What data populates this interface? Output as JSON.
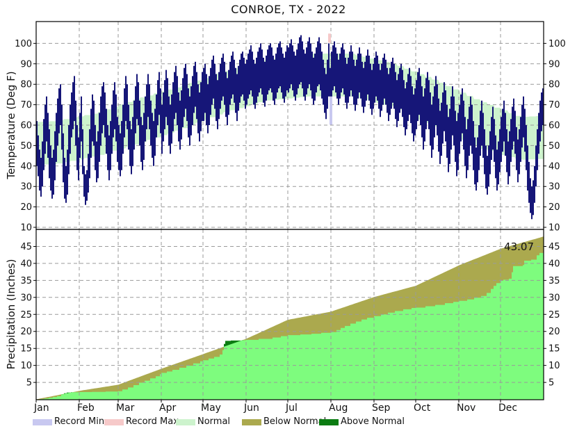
{
  "title": "CONROE, TX - 2022",
  "temp_panel": {
    "ylabel": "Temperature (Deg F)",
    "yticks": [
      10,
      20,
      30,
      40,
      50,
      60,
      70,
      80,
      90,
      100
    ]
  },
  "precip_panel": {
    "ylabel": "Precipitation (Inches)",
    "yticks": [
      5,
      10,
      15,
      20,
      25,
      30,
      35,
      40,
      45
    ],
    "annotation": "43.07"
  },
  "months": [
    "Jan",
    "Feb",
    "Mar",
    "Apr",
    "May",
    "Jun",
    "Jul",
    "Aug",
    "Sep",
    "Oct",
    "Nov",
    "Dec"
  ],
  "month_start_days": [
    0,
    31,
    59,
    90,
    120,
    151,
    181,
    212,
    243,
    273,
    304,
    334
  ],
  "colors": {
    "bar_navy": "#161678",
    "normal_band": "#cdf3cd",
    "record_min": "#c8c8f0",
    "record_max": "#f6c9c9",
    "precip_actual": "#7efc7e",
    "below_normal": "#aba94e",
    "above_normal": "#0b7c12",
    "grid": "#9a9a9a",
    "frame": "#000000"
  },
  "legend": [
    {
      "label": "Record Min",
      "color": "#c8c8f0"
    },
    {
      "label": "Record Max",
      "color": "#f6c9c9"
    },
    {
      "label": "Normal",
      "color": "#cdf3cd"
    },
    {
      "label": "Below Normal",
      "color": "#aba94e"
    },
    {
      "label": "Above Normal",
      "color": "#0b7c12"
    }
  ],
  "chart_data": [
    {
      "type": "bar",
      "title": "CONROE, TX - 2022",
      "ylabel": "Temperature (Deg F)",
      "ylim": [
        10,
        111
      ],
      "x_unit": "day_of_year_2022",
      "grid": true,
      "daily_high": [
        62,
        55,
        48,
        44,
        52,
        63,
        70,
        74,
        66,
        58,
        50,
        44,
        48,
        57,
        66,
        73,
        78,
        80,
        70,
        56,
        44,
        40,
        48,
        60,
        70,
        76,
        81,
        84,
        72,
        60,
        54,
        66,
        74,
        58,
        40,
        36,
        38,
        46,
        58,
        68,
        75,
        72,
        60,
        52,
        57,
        66,
        74,
        79,
        81,
        76,
        68,
        60,
        55,
        62,
        70,
        77,
        81,
        75,
        64,
        60,
        56,
        62,
        70,
        78,
        84,
        80,
        70,
        62,
        58,
        64,
        72,
        79,
        85,
        81,
        72,
        64,
        60,
        66,
        74,
        80,
        85,
        80,
        72,
        66,
        62,
        68,
        75,
        82,
        86,
        78,
        70,
        76,
        82,
        87,
        83,
        74,
        70,
        75,
        81,
        86,
        89,
        84,
        76,
        72,
        77,
        83,
        88,
        90,
        85,
        78,
        74,
        79,
        84,
        89,
        91,
        86,
        80,
        76,
        81,
        86,
        88,
        90,
        85,
        80,
        84,
        88,
        92,
        94,
        90,
        85,
        82,
        86,
        90,
        93,
        95,
        91,
        86,
        83,
        87,
        91,
        94,
        96,
        92,
        88,
        85,
        89,
        92,
        95,
        96,
        93,
        90,
        92,
        95,
        97,
        99,
        96,
        92,
        90,
        93,
        96,
        98,
        100,
        97,
        93,
        91,
        94,
        97,
        99,
        100,
        98,
        94,
        92,
        95,
        98,
        100,
        101,
        98,
        95,
        93,
        96,
        99,
        98,
        100,
        102,
        99,
        96,
        94,
        97,
        100,
        103,
        104,
        101,
        97,
        95,
        98,
        101,
        103,
        100,
        96,
        93,
        95,
        98,
        101,
        103,
        100,
        96,
        92,
        88,
        85,
        92,
        100,
        88,
        96,
        99,
        101,
        98,
        95,
        92,
        95,
        98,
        100,
        97,
        93,
        90,
        93,
        96,
        99,
        96,
        92,
        89,
        92,
        95,
        98,
        95,
        91,
        88,
        91,
        94,
        97,
        94,
        90,
        87,
        90,
        93,
        96,
        94,
        90,
        87,
        90,
        93,
        95,
        92,
        88,
        85,
        88,
        91,
        93,
        90,
        86,
        82,
        85,
        88,
        90,
        87,
        82,
        78,
        81,
        85,
        88,
        84,
        79,
        75,
        78,
        82,
        86,
        88,
        84,
        79,
        74,
        78,
        83,
        86,
        82,
        76,
        70,
        74,
        79,
        84,
        80,
        73,
        67,
        71,
        76,
        81,
        77,
        70,
        64,
        68,
        74,
        79,
        74,
        67,
        62,
        66,
        70,
        75,
        78,
        72,
        64,
        58,
        63,
        69,
        74,
        70,
        62,
        54,
        49,
        54,
        60,
        67,
        72,
        66,
        58,
        50,
        45,
        50,
        57,
        64,
        69,
        63,
        55,
        48,
        52,
        58,
        64,
        68,
        72,
        66,
        58,
        52,
        57,
        63,
        69,
        73,
        67,
        59,
        53,
        58,
        64,
        70,
        74,
        68,
        60,
        50,
        42,
        34,
        30,
        33,
        40,
        50,
        58,
        66,
        72,
        76,
        78
      ],
      "daily_low": [
        40,
        35,
        28,
        25,
        30,
        38,
        46,
        52,
        44,
        34,
        28,
        24,
        26,
        33,
        42,
        50,
        56,
        60,
        48,
        32,
        24,
        22,
        26,
        36,
        46,
        54,
        58,
        62,
        50,
        38,
        33,
        44,
        52,
        36,
        25,
        21,
        23,
        27,
        34,
        44,
        52,
        50,
        38,
        32,
        34,
        42,
        50,
        56,
        60,
        54,
        46,
        38,
        33,
        38,
        46,
        54,
        58,
        52,
        42,
        38,
        35,
        38,
        46,
        54,
        62,
        58,
        48,
        40,
        36,
        40,
        48,
        56,
        63,
        60,
        50,
        42,
        38,
        43,
        52,
        58,
        64,
        58,
        50,
        44,
        40,
        45,
        54,
        60,
        65,
        56,
        46,
        52,
        58,
        64,
        60,
        50,
        46,
        51,
        57,
        63,
        66,
        60,
        52,
        48,
        53,
        59,
        64,
        68,
        62,
        54,
        50,
        55,
        60,
        66,
        69,
        63,
        56,
        52,
        57,
        62,
        62,
        66,
        60,
        56,
        60,
        65,
        70,
        73,
        68,
        62,
        58,
        63,
        68,
        72,
        74,
        70,
        64,
        60,
        65,
        70,
        73,
        75,
        71,
        66,
        62,
        67,
        71,
        74,
        75,
        72,
        68,
        70,
        73,
        75,
        77,
        74,
        70,
        68,
        71,
        74,
        76,
        78,
        75,
        71,
        69,
        72,
        75,
        77,
        78,
        76,
        72,
        70,
        73,
        76,
        78,
        79,
        76,
        73,
        71,
        74,
        77,
        76,
        78,
        80,
        77,
        74,
        72,
        75,
        78,
        80,
        81,
        78,
        74,
        72,
        75,
        78,
        80,
        77,
        73,
        70,
        72,
        76,
        79,
        80,
        77,
        73,
        70,
        66,
        63,
        68,
        74,
        74,
        74,
        77,
        79,
        76,
        73,
        70,
        73,
        76,
        78,
        75,
        71,
        68,
        71,
        74,
        77,
        74,
        70,
        67,
        70,
        73,
        76,
        73,
        69,
        66,
        69,
        72,
        75,
        72,
        68,
        65,
        68,
        71,
        74,
        72,
        68,
        64,
        67,
        70,
        73,
        70,
        66,
        62,
        65,
        68,
        71,
        68,
        63,
        59,
        62,
        66,
        68,
        64,
        59,
        55,
        58,
        62,
        65,
        61,
        56,
        52,
        55,
        58,
        62,
        65,
        60,
        54,
        48,
        52,
        58,
        62,
        58,
        50,
        44,
        48,
        54,
        60,
        55,
        47,
        41,
        45,
        51,
        57,
        52,
        44,
        37,
        41,
        48,
        55,
        50,
        42,
        35,
        38,
        46,
        52,
        56,
        48,
        40,
        34,
        38,
        45,
        50,
        46,
        38,
        31,
        28,
        32,
        38,
        45,
        50,
        44,
        36,
        29,
        26,
        30,
        36,
        43,
        48,
        42,
        34,
        28,
        31,
        37,
        42,
        47,
        52,
        45,
        37,
        31,
        35,
        42,
        48,
        52,
        46,
        38,
        32,
        36,
        42,
        49,
        54,
        47,
        38,
        28,
        22,
        17,
        14,
        16,
        22,
        30,
        38,
        46,
        52,
        57,
        60
      ],
      "normal_band_anchors": [
        [
          0,
          61.5,
          40.5
        ],
        [
          15,
          62,
          41
        ],
        [
          45,
          66,
          45
        ],
        [
          74,
          73,
          51
        ],
        [
          105,
          79,
          58
        ],
        [
          135,
          86,
          66
        ],
        [
          166,
          92,
          72
        ],
        [
          196,
          95,
          74
        ],
        [
          227,
          95,
          74
        ],
        [
          258,
          90,
          69
        ],
        [
          288,
          82,
          59
        ],
        [
          319,
          72,
          49
        ],
        [
          349,
          64,
          43
        ],
        [
          365,
          64.5,
          43.5
        ]
      ],
      "record_events": [
        {
          "day": 210,
          "kind": "record-max",
          "from": 100.3,
          "to": 104.8
        },
        {
          "day": 211,
          "kind": "record-min",
          "from": 74.0,
          "to": 60.2
        }
      ]
    },
    {
      "type": "area",
      "ylabel": "Precipitation (Inches)",
      "ylim": [
        0,
        50
      ],
      "x_unit": "day_of_year_2022",
      "grid": true,
      "annotation": {
        "text": "43.07",
        "meaning": "year-end actual cumulative inches"
      },
      "actual_cumulative_steps": [
        [
          0,
          0
        ],
        [
          3,
          0.1
        ],
        [
          6,
          0.25
        ],
        [
          9,
          0.45
        ],
        [
          12,
          0.7
        ],
        [
          15,
          0.95
        ],
        [
          18,
          1.5
        ],
        [
          20,
          1.8
        ],
        [
          22,
          2.0
        ],
        [
          25,
          2.1
        ],
        [
          31,
          2.15
        ],
        [
          40,
          2.2
        ],
        [
          50,
          2.3
        ],
        [
          59,
          2.4
        ],
        [
          62,
          2.9
        ],
        [
          66,
          3.5
        ],
        [
          70,
          4.2
        ],
        [
          74,
          4.9
        ],
        [
          78,
          5.5
        ],
        [
          82,
          6.2
        ],
        [
          86,
          6.8
        ],
        [
          89,
          7.4
        ],
        [
          90,
          7.8
        ],
        [
          94,
          8.2
        ],
        [
          98,
          8.7
        ],
        [
          103,
          9.3
        ],
        [
          108,
          9.9
        ],
        [
          113,
          10.6
        ],
        [
          118,
          11.2
        ],
        [
          120,
          11.5
        ],
        [
          124,
          12.0
        ],
        [
          128,
          12.5
        ],
        [
          132,
          13.2
        ],
        [
          134,
          14.5
        ],
        [
          135,
          16.3
        ],
        [
          136,
          17.2
        ],
        [
          140,
          17.3
        ],
        [
          148,
          17.4
        ],
        [
          151,
          17.5
        ],
        [
          160,
          17.8
        ],
        [
          170,
          18.2
        ],
        [
          176,
          18.6
        ],
        [
          181,
          18.9
        ],
        [
          190,
          19.1
        ],
        [
          198,
          19.3
        ],
        [
          205,
          19.6
        ],
        [
          212,
          19.8
        ],
        [
          216,
          20.4
        ],
        [
          219,
          21.0
        ],
        [
          222,
          21.6
        ],
        [
          226,
          22.3
        ],
        [
          230,
          22.9
        ],
        [
          234,
          23.5
        ],
        [
          238,
          24.0
        ],
        [
          243,
          24.5
        ],
        [
          248,
          25.0
        ],
        [
          253,
          25.5
        ],
        [
          258,
          26.0
        ],
        [
          264,
          26.5
        ],
        [
          270,
          26.9
        ],
        [
          273,
          27.0
        ],
        [
          280,
          27.4
        ],
        [
          287,
          27.8
        ],
        [
          294,
          28.3
        ],
        [
          300,
          28.7
        ],
        [
          304,
          29.0
        ],
        [
          310,
          29.4
        ],
        [
          315,
          29.9
        ],
        [
          320,
          30.4
        ],
        [
          324,
          31.3
        ],
        [
          327,
          32.5
        ],
        [
          329,
          33.4
        ],
        [
          331,
          34.2
        ],
        [
          334,
          34.9
        ],
        [
          336,
          35.2
        ],
        [
          340,
          35.5
        ],
        [
          342,
          37.4
        ],
        [
          343,
          39.2
        ],
        [
          350,
          39.5
        ],
        [
          351,
          40.8
        ],
        [
          356,
          41.1
        ],
        [
          360,
          42.4
        ],
        [
          362,
          43.07
        ],
        [
          365,
          43.07
        ]
      ],
      "normal_cumulative_anchors": [
        [
          0,
          0
        ],
        [
          31,
          2.5
        ],
        [
          59,
          4.3
        ],
        [
          90,
          9.0
        ],
        [
          120,
          13.3
        ],
        [
          151,
          17.8
        ],
        [
          181,
          23.4
        ],
        [
          212,
          25.8
        ],
        [
          243,
          30.1
        ],
        [
          273,
          33.4
        ],
        [
          304,
          39.4
        ],
        [
          334,
          44.3
        ],
        [
          365,
          47.9
        ]
      ]
    }
  ]
}
